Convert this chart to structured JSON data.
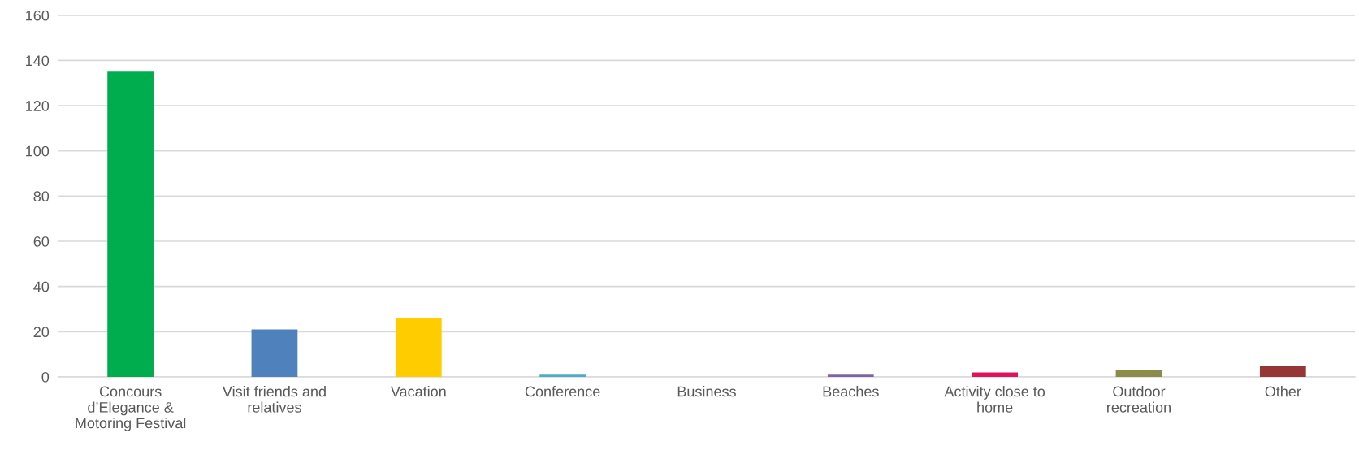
{
  "chart_data": {
    "type": "bar",
    "categories": [
      "Concours\nd’Elegance &\nMotoring Festival",
      "Visit friends and\nrelatives",
      "Vacation",
      "Conference",
      "Business",
      "Beaches",
      "Activity close to\nhome",
      "Outdoor\nrecreation",
      "Other"
    ],
    "values": [
      135,
      21,
      26,
      1,
      0,
      1,
      2,
      3,
      5
    ],
    "colors": [
      "#00ad4e",
      "#4f81bd",
      "#ffcc00",
      "#4bacc6",
      "#a5a5a5",
      "#8064a2",
      "#e0115f",
      "#8c8c4a",
      "#953735"
    ],
    "ylim": [
      0,
      160
    ],
    "yticks": [
      0,
      20,
      40,
      60,
      80,
      100,
      120,
      140,
      160
    ],
    "grid": "y",
    "legend": false
  }
}
